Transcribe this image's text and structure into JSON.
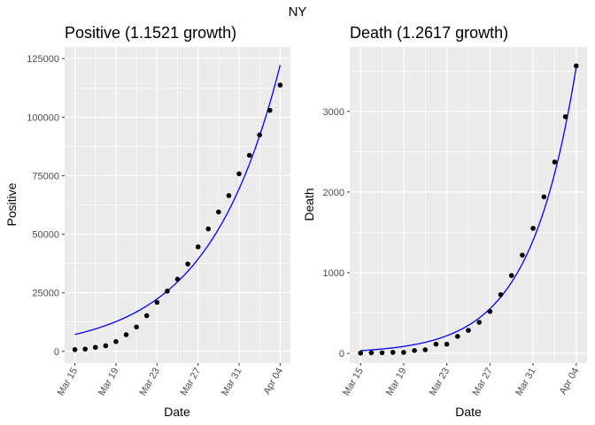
{
  "figure": {
    "title": "NY"
  },
  "chart_data": [
    {
      "type": "scatter",
      "title": "Positive (1.1521 growth)",
      "xlabel": "Date",
      "ylabel": "Positive",
      "xlim": [
        "2020-03-14",
        "2020-04-05"
      ],
      "ylim": [
        -5000,
        130000
      ],
      "xticks": [
        {
          "date": "2020-03-15",
          "label": "Mar 15"
        },
        {
          "date": "2020-03-19",
          "label": "Mar 19"
        },
        {
          "date": "2020-03-23",
          "label": "Mar 23"
        },
        {
          "date": "2020-03-27",
          "label": "Mar 27"
        },
        {
          "date": "2020-03-31",
          "label": "Mar 31"
        },
        {
          "date": "2020-04-04",
          "label": "Apr 04"
        }
      ],
      "yticks": [
        {
          "value": 0,
          "label": "0"
        },
        {
          "value": 25000,
          "label": "25000"
        },
        {
          "value": 50000,
          "label": "50000"
        },
        {
          "value": 75000,
          "label": "75000"
        },
        {
          "value": 100000,
          "label": "100000"
        },
        {
          "value": 125000,
          "label": "125000"
        }
      ],
      "grid": true,
      "points": {
        "color": "#000000",
        "x": [
          "2020-03-15",
          "2020-03-16",
          "2020-03-17",
          "2020-03-18",
          "2020-03-19",
          "2020-03-20",
          "2020-03-21",
          "2020-03-22",
          "2020-03-23",
          "2020-03-24",
          "2020-03-25",
          "2020-03-26",
          "2020-03-27",
          "2020-03-28",
          "2020-03-29",
          "2020-03-30",
          "2020-03-31",
          "2020-04-01",
          "2020-04-02",
          "2020-04-03",
          "2020-04-04"
        ],
        "y": [
          729,
          950,
          1700,
          2380,
          4150,
          7100,
          10400,
          15200,
          20900,
          25700,
          30800,
          37300,
          44600,
          52300,
          59500,
          66500,
          75800,
          83700,
          92400,
          102900,
          113700
        ]
      },
      "fit": {
        "color": "#0000ff",
        "start": "2020-03-15",
        "end": "2020-04-04",
        "y_start": 7200,
        "growth": 1.1521
      }
    },
    {
      "type": "scatter",
      "title": "Death (1.2617 growth)",
      "xlabel": "Date",
      "ylabel": "Death",
      "xlim": [
        "2020-03-14",
        "2020-04-05"
      ],
      "ylim": [
        -120,
        3800
      ],
      "xticks": [
        {
          "date": "2020-03-15",
          "label": "Mar 15"
        },
        {
          "date": "2020-03-19",
          "label": "Mar 19"
        },
        {
          "date": "2020-03-23",
          "label": "Mar 23"
        },
        {
          "date": "2020-03-27",
          "label": "Mar 27"
        },
        {
          "date": "2020-03-31",
          "label": "Mar 31"
        },
        {
          "date": "2020-04-04",
          "label": "Apr 04"
        }
      ],
      "yticks": [
        {
          "value": 0,
          "label": "0"
        },
        {
          "value": 1000,
          "label": "1000"
        },
        {
          "value": 2000,
          "label": "2000"
        },
        {
          "value": 3000,
          "label": "3000"
        }
      ],
      "grid": true,
      "points": {
        "color": "#000000",
        "x": [
          "2020-03-15",
          "2020-03-16",
          "2020-03-17",
          "2020-03-18",
          "2020-03-19",
          "2020-03-20",
          "2020-03-21",
          "2020-03-22",
          "2020-03-23",
          "2020-03-24",
          "2020-03-25",
          "2020-03-26",
          "2020-03-27",
          "2020-03-28",
          "2020-03-29",
          "2020-03-30",
          "2020-03-31",
          "2020-04-01",
          "2020-04-02",
          "2020-04-03",
          "2020-04-04"
        ],
        "y": [
          3,
          7,
          7,
          12,
          12,
          35,
          44,
          114,
          114,
          210,
          285,
          385,
          519,
          728,
          965,
          1218,
          1550,
          1941,
          2373,
          2935,
          3565
        ]
      },
      "fit": {
        "color": "#0000ff",
        "start": "2020-03-15",
        "end": "2020-04-04",
        "y_start": 34,
        "growth": 1.2617
      }
    }
  ]
}
